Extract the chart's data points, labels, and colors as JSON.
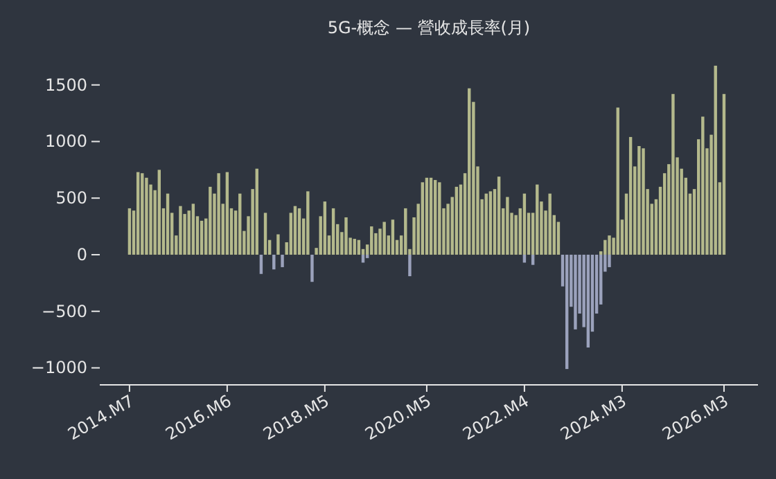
{
  "chart_data": {
    "type": "bar",
    "stacked": true,
    "title": "5G-概念 — 營收成長率(月)",
    "x": [
      "2014-07",
      "2014-08",
      "2014-09",
      "2014-10",
      "2014-11",
      "2014-12",
      "2015-01",
      "2015-02",
      "2015-03",
      "2015-04",
      "2015-05",
      "2015-06",
      "2015-07",
      "2015-08",
      "2015-09",
      "2015-10",
      "2015-11",
      "2015-12",
      "2016-01",
      "2016-02",
      "2016-03",
      "2016-04",
      "2016-05",
      "2016-06",
      "2016-07",
      "2016-08",
      "2016-09",
      "2016-10",
      "2016-11",
      "2016-12",
      "2017-01",
      "2017-02",
      "2017-03",
      "2017-04",
      "2017-05",
      "2017-06",
      "2017-07",
      "2017-08",
      "2017-09",
      "2017-10",
      "2017-11",
      "2017-12",
      "2018-01",
      "2018-02",
      "2018-03",
      "2018-04",
      "2018-05",
      "2018-06",
      "2018-07",
      "2018-08",
      "2018-09",
      "2018-10",
      "2018-11",
      "2018-12",
      "2019-01",
      "2019-02",
      "2019-03",
      "2019-04",
      "2019-05",
      "2019-06",
      "2019-07",
      "2019-08",
      "2019-09",
      "2019-10",
      "2019-11",
      "2019-12",
      "2020-01",
      "2020-02",
      "2020-03",
      "2020-04",
      "2020-05",
      "2020-06",
      "2020-07",
      "2020-08",
      "2020-09",
      "2020-10",
      "2020-11",
      "2020-12",
      "2021-01",
      "2021-02",
      "2021-03",
      "2021-04",
      "2021-05",
      "2021-06",
      "2021-07",
      "2021-08",
      "2021-09",
      "2021-10",
      "2021-11",
      "2021-12",
      "2022-01",
      "2022-02",
      "2022-03",
      "2022-04",
      "2022-05",
      "2022-06",
      "2022-07",
      "2022-08",
      "2022-09",
      "2022-10",
      "2022-11",
      "2022-12",
      "2023-01",
      "2023-02",
      "2023-03",
      "2023-04",
      "2023-05",
      "2023-06",
      "2023-07",
      "2023-08",
      "2023-09",
      "2023-10",
      "2023-11",
      "2023-12",
      "2024-01",
      "2024-02",
      "2024-03",
      "2024-04",
      "2024-05",
      "2024-06",
      "2024-07",
      "2024-08",
      "2024-09",
      "2024-10",
      "2024-11",
      "2024-12",
      "2025-01",
      "2025-02",
      "2025-03",
      "2025-04",
      "2025-05",
      "2025-06",
      "2025-07",
      "2025-08",
      "2025-09",
      "2025-10",
      "2025-11",
      "2025-12",
      "2026-01",
      "2026-02",
      "2026-03"
    ],
    "series": [
      {
        "color": "#b4b98c",
        "values": [
          410,
          390,
          730,
          720,
          680,
          620,
          570,
          750,
          410,
          540,
          370,
          170,
          430,
          360,
          390,
          450,
          340,
          300,
          320,
          600,
          540,
          720,
          450,
          730,
          410,
          390,
          540,
          210,
          340,
          580,
          760,
          null,
          370,
          130,
          null,
          180,
          null,
          110,
          370,
          430,
          410,
          320,
          560,
          null,
          60,
          340,
          470,
          170,
          410,
          270,
          200,
          330,
          150,
          140,
          130,
          50,
          90,
          250,
          190,
          230,
          290,
          170,
          310,
          130,
          170,
          410,
          50,
          330,
          450,
          640,
          680,
          680,
          660,
          640,
          410,
          450,
          510,
          600,
          620,
          720,
          1470,
          1350,
          780,
          490,
          540,
          560,
          580,
          690,
          410,
          510,
          370,
          350,
          410,
          540,
          370,
          370,
          620,
          470,
          390,
          540,
          350,
          290,
          null,
          null,
          null,
          null,
          null,
          null,
          null,
          null,
          null,
          30,
          130,
          170,
          150,
          1300,
          310,
          540,
          1040,
          780,
          960,
          940,
          580,
          450,
          490,
          600,
          720,
          800,
          1420,
          860,
          760,
          680,
          540,
          580,
          1020,
          1220,
          940,
          1060,
          1670,
          640,
          1420
        ]
      },
      {
        "color": "#9ba2bc",
        "values": [
          null,
          null,
          null,
          null,
          null,
          null,
          null,
          null,
          null,
          null,
          null,
          null,
          null,
          null,
          null,
          null,
          null,
          null,
          null,
          null,
          null,
          null,
          null,
          null,
          null,
          null,
          null,
          null,
          null,
          null,
          null,
          -170,
          null,
          null,
          -130,
          null,
          -110,
          null,
          null,
          null,
          null,
          null,
          null,
          -240,
          null,
          null,
          null,
          null,
          null,
          null,
          null,
          null,
          null,
          null,
          null,
          -70,
          -30,
          null,
          null,
          null,
          null,
          null,
          null,
          null,
          null,
          null,
          -190,
          null,
          null,
          null,
          null,
          null,
          null,
          null,
          null,
          null,
          null,
          null,
          null,
          null,
          null,
          null,
          null,
          null,
          null,
          null,
          null,
          null,
          null,
          null,
          null,
          null,
          null,
          -70,
          null,
          -90,
          null,
          null,
          null,
          null,
          null,
          null,
          -280,
          -1010,
          -460,
          -660,
          -520,
          -640,
          -820,
          -680,
          -520,
          -440,
          -150,
          -110,
          null,
          null,
          null,
          null,
          null,
          null,
          null,
          null,
          null,
          null,
          null,
          null,
          null,
          null,
          null,
          null,
          null,
          null,
          null,
          null,
          null,
          null,
          null,
          null,
          null,
          null,
          null
        ]
      }
    ],
    "xlim": [
      "2013-12",
      "2026-11"
    ],
    "xticks": [
      {
        "value": "2014-07",
        "label": "2014.M7"
      },
      {
        "value": "2016-06",
        "label": "2016.M6"
      },
      {
        "value": "2018-05",
        "label": "2018.M5"
      },
      {
        "value": "2020-05",
        "label": "2020.M5"
      },
      {
        "value": "2022-04",
        "label": "2022.M4"
      },
      {
        "value": "2024-03",
        "label": "2024.M3"
      },
      {
        "value": "2026-03",
        "label": "2026.M3"
      }
    ],
    "ylim": [
      -1150,
      1700
    ],
    "yticks": [
      {
        "value": -1000,
        "label": "−1000"
      },
      {
        "value": -500,
        "label": "−500"
      },
      0,
      500,
      1000,
      1500
    ],
    "grid": false
  }
}
